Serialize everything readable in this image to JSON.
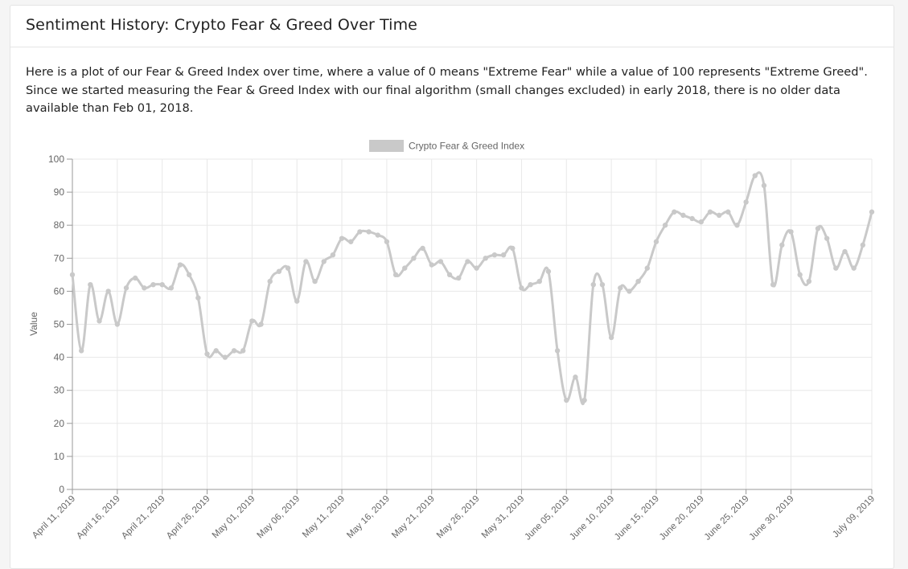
{
  "header": {
    "title": "Sentiment History: Crypto Fear & Greed Over Time"
  },
  "intro": {
    "text": "Here is a plot of our Fear & Greed Index over time, where a value of 0 means \"Extreme Fear\" while a value of 100 represents \"Extreme Greed\". Since we started measuring the Fear & Greed Index with our final algorithm (small changes excluded) in early 2018, there is no older data available than Feb 01, 2018."
  },
  "colors": {
    "series": "#c9c9c9",
    "grid": "#e8e8e8",
    "axis": "#9a9a9a",
    "text": "#666666",
    "plot_background": "#ffffff"
  },
  "chart_data": {
    "type": "line",
    "title": "",
    "xlabel": "",
    "ylabel": "Value",
    "ylim": [
      0,
      100
    ],
    "yticks": [
      0,
      10,
      20,
      30,
      40,
      50,
      60,
      70,
      80,
      90,
      100
    ],
    "grid": true,
    "legend": "top-center",
    "x_start": "April 11, 2019",
    "x_end": "July 09, 2019",
    "xtick_labels": [
      "April 11, 2019",
      "April 16, 2019",
      "April 21, 2019",
      "April 26, 2019",
      "May 01, 2019",
      "May 06, 2019",
      "May 11, 2019",
      "May 16, 2019",
      "May 21, 2019",
      "May 26, 2019",
      "May 31, 2019",
      "June 05, 2019",
      "June 10, 2019",
      "June 15, 2019",
      "June 20, 2019",
      "June 25, 2019",
      "June 30, 2019",
      "July 09, 2019"
    ],
    "series": [
      {
        "name": "Crypto Fear & Greed Index",
        "values": [
          65,
          42,
          62,
          51,
          60,
          50,
          61,
          64,
          61,
          62,
          62,
          61,
          68,
          65,
          58,
          41,
          42,
          40,
          42,
          42,
          51,
          50,
          63,
          66,
          67,
          57,
          69,
          63,
          69,
          71,
          76,
          75,
          78,
          78,
          77,
          75,
          65,
          67,
          70,
          73,
          68,
          69,
          65,
          64,
          69,
          67,
          70,
          71,
          71,
          73,
          61,
          62,
          63,
          66,
          42,
          27,
          34,
          27,
          62,
          62,
          46,
          61,
          60,
          63,
          67,
          75,
          80,
          84,
          83,
          82,
          81,
          84,
          83,
          84,
          80,
          87,
          95,
          92,
          62,
          74,
          78,
          65,
          63,
          79,
          76,
          67,
          72,
          67,
          74,
          84
        ]
      }
    ]
  }
}
